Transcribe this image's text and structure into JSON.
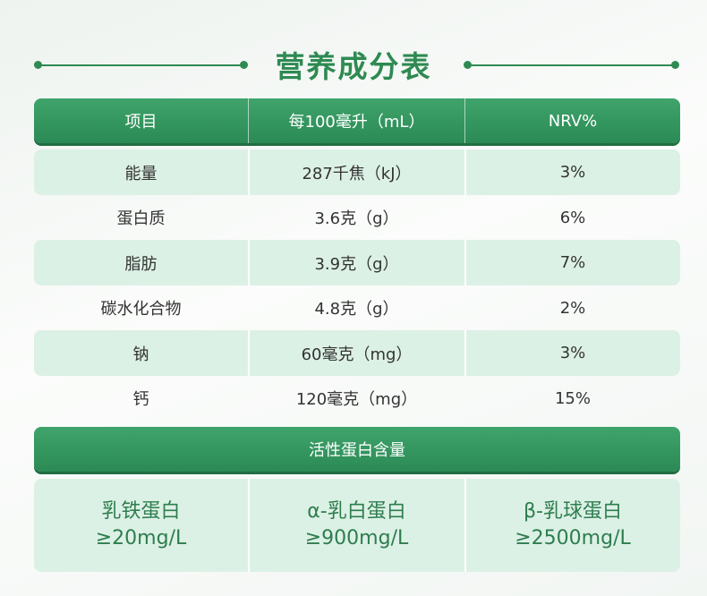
{
  "title": "营养成分表",
  "table": {
    "header": [
      "项目",
      "每100毫升（mL）",
      "NRV%"
    ],
    "rows": [
      [
        "能量",
        "287千焦（kJ）",
        "3%"
      ],
      [
        "蛋白质",
        "3.6克（g）",
        "6%"
      ],
      [
        "脂肪",
        "3.9克（g）",
        "7%"
      ],
      [
        "碳水化合物",
        "4.8克（g）",
        "2%"
      ],
      [
        "钠",
        "60毫克（mg）",
        "3%"
      ],
      [
        "钙",
        "120毫克（mg）",
        "15%"
      ]
    ]
  },
  "active_protein": {
    "title": "活性蛋白含量",
    "items": [
      {
        "name": "乳铁蛋白",
        "value": "≥20mg/L"
      },
      {
        "name": "α-乳白蛋白",
        "value": "≥900mg/L"
      },
      {
        "name": "β-乳球蛋白",
        "value": "≥2500mg/L"
      }
    ]
  }
}
